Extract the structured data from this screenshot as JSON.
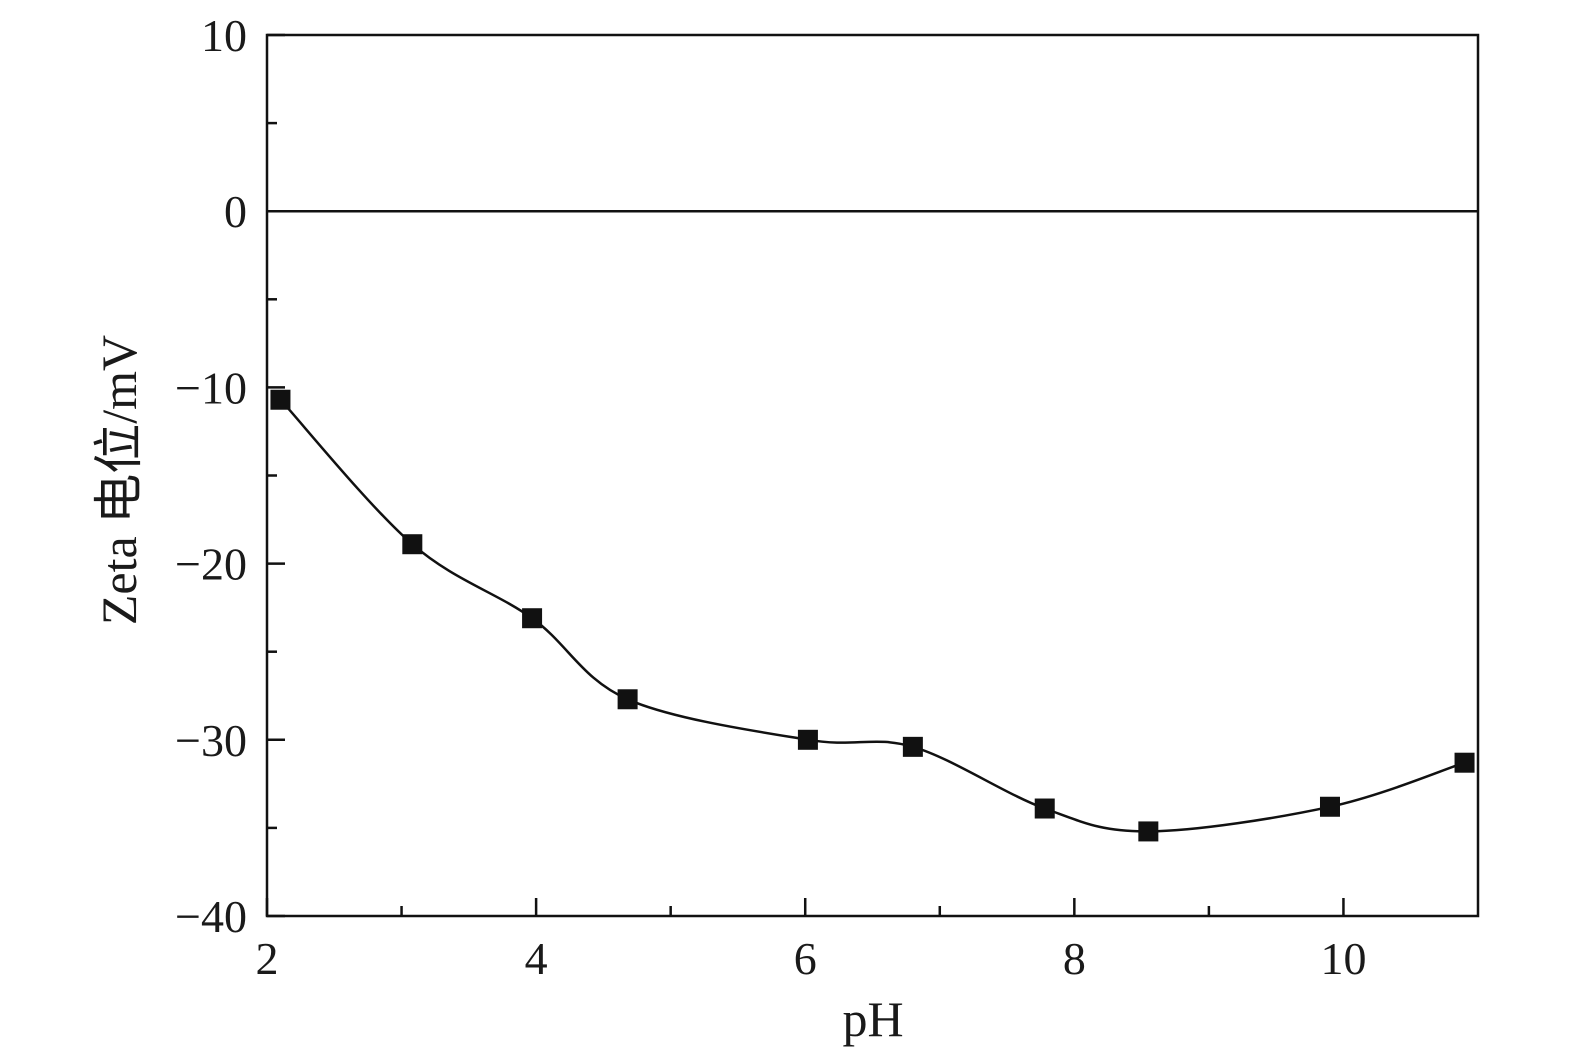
{
  "chart_data": {
    "type": "scatter",
    "title": "",
    "xlabel": "pH",
    "ylabel": "Zeta 电位/mV",
    "xlim": [
      2,
      11
    ],
    "ylim": [
      -40,
      10
    ],
    "x_major_ticks": [
      2,
      4,
      6,
      8,
      10
    ],
    "x_tick_labels": [
      "2",
      "4",
      "6",
      "8",
      "10"
    ],
    "x_minor_ticks": [
      3,
      5,
      7,
      9
    ],
    "y_major_ticks": [
      -40,
      -30,
      -20,
      -10,
      0,
      10
    ],
    "y_tick_labels": [
      "−40",
      "−30",
      "−20",
      "−10",
      "0",
      "10"
    ],
    "y_minor_ticks": [
      -35,
      -25,
      -15,
      -5,
      5
    ],
    "reference_line_y": 0,
    "grid": false,
    "legend": "none",
    "series": [
      {
        "marker": "square",
        "fit_curve": "smooth",
        "color": "#111111",
        "x": [
          2.1,
          3.08,
          3.97,
          4.68,
          6.02,
          6.8,
          7.78,
          8.55,
          9.9,
          10.9
        ],
        "y": [
          -10.7,
          -18.9,
          -23.1,
          -27.7,
          -30.0,
          -30.4,
          -33.9,
          -35.2,
          -33.8,
          -31.3
        ]
      }
    ]
  }
}
